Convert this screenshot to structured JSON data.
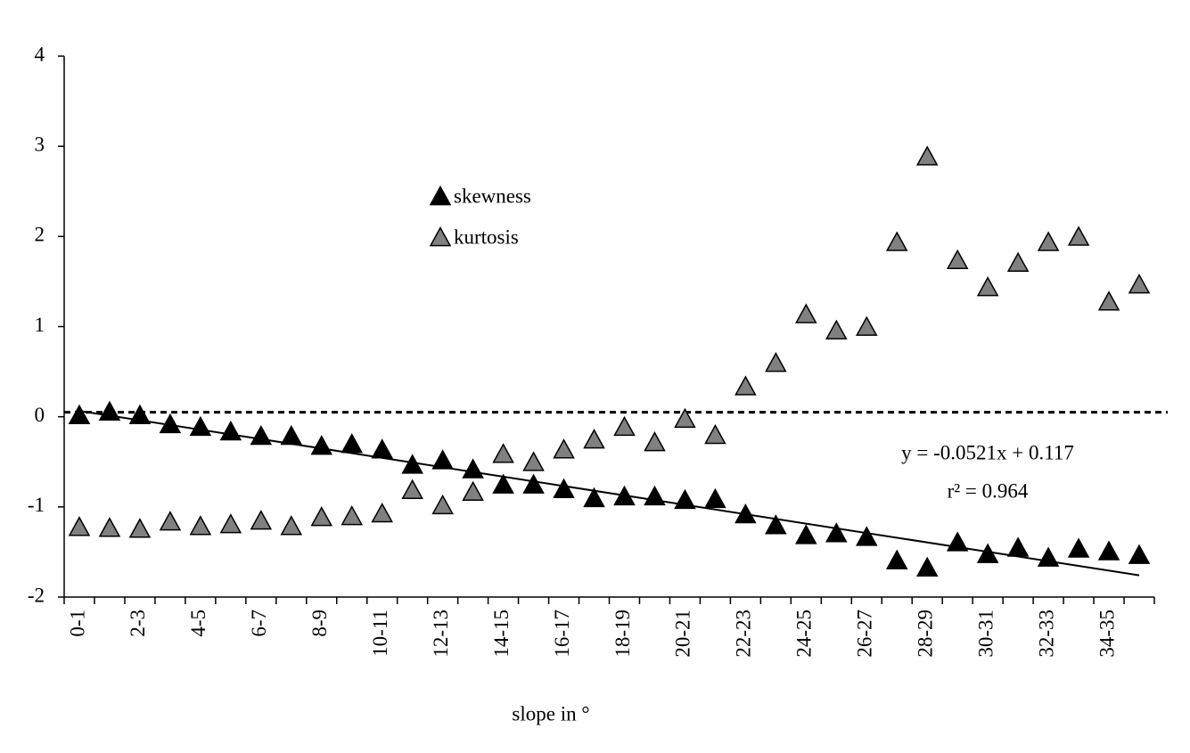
{
  "chart_data": {
    "type": "scatter",
    "x_label": "slope in °",
    "categories": [
      "0-1",
      null,
      "2-3",
      null,
      "4-5",
      null,
      "6-7",
      null,
      "8-9",
      null,
      "10-11",
      null,
      "12-13",
      null,
      "14-15",
      null,
      "16-17",
      null,
      "18-19",
      null,
      "20-21",
      null,
      "22-23",
      null,
      "24-25",
      null,
      "26-27",
      null,
      "28-29",
      null,
      "30-31",
      null,
      "32-33",
      null,
      "34-35",
      null
    ],
    "series": [
      {
        "name": "skewness",
        "color": "#000000",
        "values": [
          0.0,
          0.04,
          0.0,
          -0.1,
          -0.13,
          -0.18,
          -0.23,
          -0.23,
          -0.34,
          -0.32,
          -0.38,
          -0.55,
          -0.5,
          -0.6,
          -0.77,
          -0.77,
          -0.82,
          -0.92,
          -0.9,
          -0.9,
          -0.94,
          -0.93,
          -1.1,
          -1.22,
          -1.33,
          -1.31,
          -1.35,
          -1.61,
          -1.69,
          -1.41,
          -1.54,
          -1.47,
          -1.58,
          -1.48,
          -1.51,
          -1.55
        ]
      },
      {
        "name": "kurtosis",
        "color": "#808080",
        "values": [
          -1.24,
          -1.25,
          -1.26,
          -1.18,
          -1.23,
          -1.21,
          -1.17,
          -1.23,
          -1.13,
          -1.12,
          -1.09,
          -0.83,
          -1.0,
          -0.85,
          -0.43,
          -0.52,
          -0.38,
          -0.27,
          -0.13,
          -0.3,
          -0.04,
          -0.22,
          0.32,
          0.58,
          1.12,
          0.94,
          0.98,
          1.92,
          2.87,
          1.72,
          1.42,
          1.69,
          1.92,
          1.98,
          1.26,
          1.45
        ]
      }
    ],
    "trendline": {
      "slope": -0.0521,
      "intercept": 0.117,
      "equation": "y = -0.0521x + 0.117",
      "r2_label": "r² = 0.964"
    },
    "reference_line": 0.05,
    "ylim": [
      -2,
      4
    ],
    "yticks": [
      -2,
      -1,
      0,
      1,
      2,
      3,
      4
    ]
  }
}
